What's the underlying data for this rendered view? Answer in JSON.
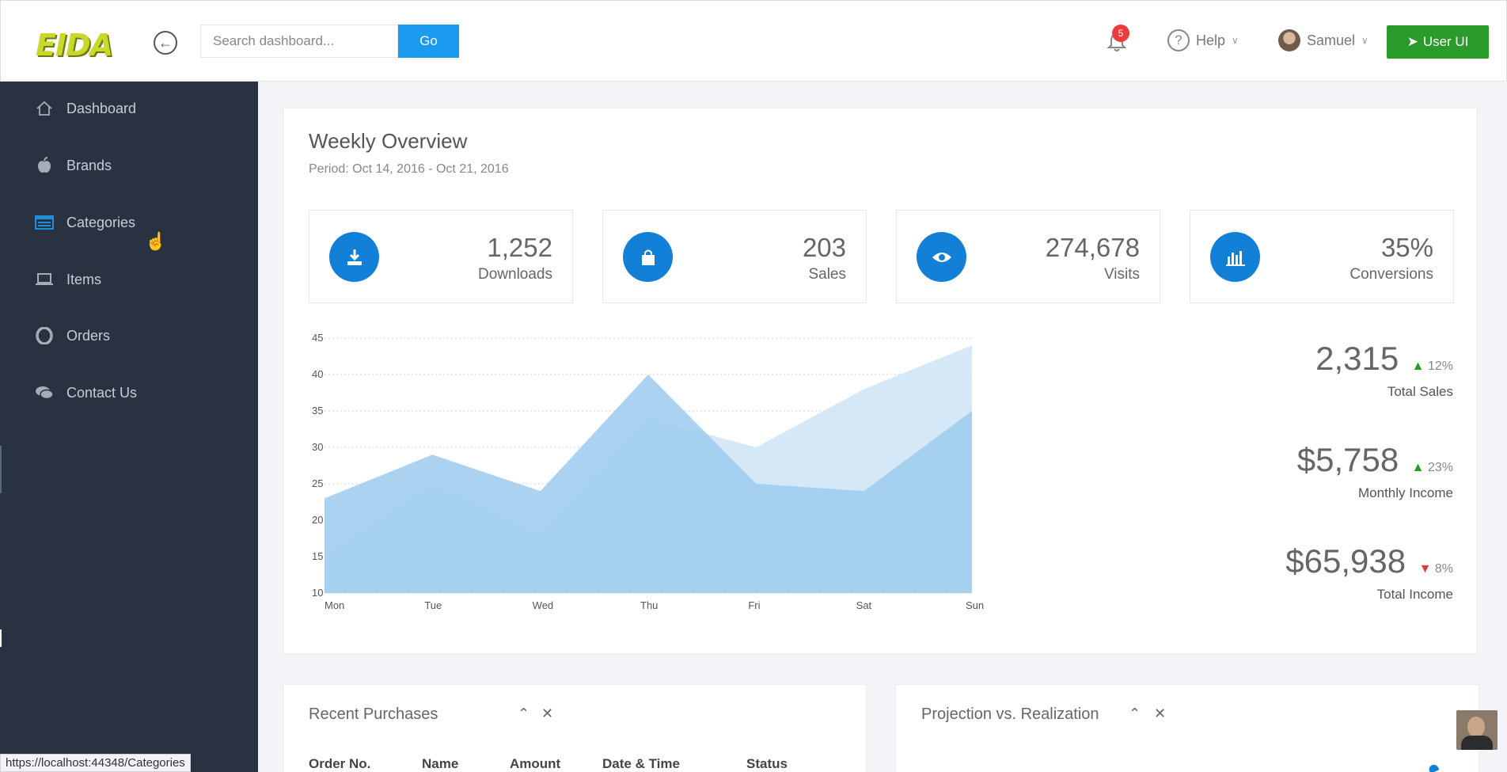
{
  "header": {
    "logo": "EIDA",
    "search_placeholder": "Search dashboard...",
    "go_label": "Go",
    "notifications_count": "5",
    "help_label": "Help",
    "user_name": "Samuel",
    "user_ui_label": "User UI"
  },
  "sidebar": {
    "items": [
      {
        "label": "Dashboard",
        "icon": "home-icon"
      },
      {
        "label": "Brands",
        "icon": "apple-icon"
      },
      {
        "label": "Categories",
        "icon": "list-icon"
      },
      {
        "label": "Items",
        "icon": "laptop-icon"
      },
      {
        "label": "Orders",
        "icon": "opera-icon"
      },
      {
        "label": "Contact Us",
        "icon": "chat-icon"
      }
    ]
  },
  "overview": {
    "title": "Weekly Overview",
    "period": "Period: Oct 14, 2016 - Oct 21, 2016",
    "stats": [
      {
        "value": "1,252",
        "label": "Downloads",
        "icon": "download-icon"
      },
      {
        "value": "203",
        "label": "Sales",
        "icon": "shopping-bag-icon"
      },
      {
        "value": "274,678",
        "label": "Visits",
        "icon": "eye-icon"
      },
      {
        "value": "35%",
        "label": "Conversions",
        "icon": "bar-chart-icon"
      }
    ],
    "kpis": [
      {
        "value": "2,315",
        "change": "12%",
        "direction": "up",
        "label": "Total Sales"
      },
      {
        "value": "$5,758",
        "change": "23%",
        "direction": "up",
        "label": "Monthly Income"
      },
      {
        "value": "$65,938",
        "change": "8%",
        "direction": "down",
        "label": "Total Income"
      }
    ]
  },
  "chart_data": {
    "type": "area",
    "categories": [
      "Mon",
      "Tue",
      "Wed",
      "Thu",
      "Fri",
      "Sat",
      "Sun"
    ],
    "series": [
      {
        "values": [
          15,
          25,
          18,
          34,
          30,
          38,
          44
        ],
        "color": "#cfe5f6"
      },
      {
        "values": [
          23,
          29,
          24,
          40,
          25,
          24,
          35
        ],
        "color": "#9ccbee"
      }
    ],
    "ylim": [
      10,
      45
    ],
    "yticks": [
      10,
      15,
      20,
      25,
      30,
      35,
      40,
      45
    ],
    "grid": true
  },
  "recent": {
    "title": "Recent Purchases",
    "columns": [
      "Order No.",
      "Name",
      "Amount",
      "Date & Time",
      "Status"
    ]
  },
  "projection": {
    "title": "Projection vs. Realization"
  },
  "statusbar": {
    "url": "https://localhost:44348/Categories"
  },
  "colors": {
    "sidebar": "#283240",
    "accent": "#1380d8",
    "go_button": "#1a9bf0",
    "user_ui_button": "#2a9a2a",
    "badge": "#ee3b3b"
  }
}
